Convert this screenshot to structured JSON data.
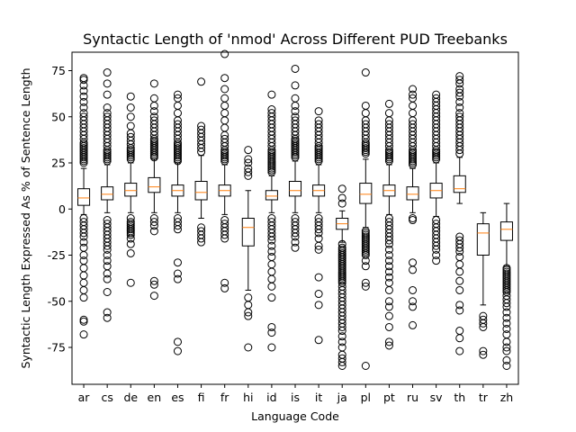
{
  "chart_data": {
    "type": "boxplot",
    "title": "Syntactic Length of 'nmod' Across Different PUD Treebanks",
    "xlabel": "Language Code",
    "ylabel": "Syntactic Length Expressed As % of Sentence Length",
    "ylim": [
      -95,
      85
    ],
    "yticks": [
      -75,
      -50,
      -25,
      0,
      25,
      50,
      75
    ],
    "grid": false,
    "colors": {
      "box": "#000000",
      "median": "#ff7f0e",
      "flier": "#000000"
    },
    "categories": [
      "ar",
      "cs",
      "de",
      "en",
      "es",
      "fi",
      "fr",
      "hi",
      "id",
      "is",
      "it",
      "ja",
      "pl",
      "pt",
      "ru",
      "sv",
      "th",
      "tr",
      "zh"
    ],
    "boxes": [
      {
        "label": "ar",
        "whislo": -3,
        "q1": 2,
        "med": 6,
        "q3": 11,
        "whishi": 22,
        "fliers": [
          25,
          26,
          27,
          28,
          29,
          30,
          31,
          32,
          33,
          34,
          35,
          36,
          38,
          40,
          42,
          44,
          46,
          48,
          50,
          52,
          55,
          58,
          61,
          64,
          67,
          70,
          71,
          -5,
          -7,
          -9,
          -11,
          -13,
          -15,
          -18,
          -21,
          -25,
          -28,
          -32,
          -36,
          -40,
          -44,
          -48,
          -60,
          -61,
          -68
        ]
      },
      {
        "label": "cs",
        "whislo": -2,
        "q1": 5,
        "med": 8,
        "q3": 12,
        "whishi": 24,
        "fliers": [
          26,
          27,
          28,
          29,
          30,
          31,
          32,
          34,
          36,
          38,
          40,
          42,
          44,
          46,
          48,
          50,
          52,
          55,
          62,
          68,
          74,
          -6,
          -8,
          -10,
          -12,
          -14,
          -16,
          -18,
          -20,
          -22,
          -25,
          -28,
          -31,
          -35,
          -38,
          -45,
          -56,
          -59
        ]
      },
      {
        "label": "de",
        "whislo": -2,
        "q1": 7,
        "med": 10,
        "q3": 14,
        "whishi": 25,
        "fliers": [
          27,
          28,
          29,
          30,
          31,
          32,
          33,
          35,
          37,
          39,
          41,
          45,
          50,
          55,
          61,
          -5,
          -7,
          -8,
          -9,
          -10,
          -11,
          -12,
          -13,
          -14,
          -16,
          -19,
          -24,
          -40
        ]
      },
      {
        "label": "en",
        "whislo": -2,
        "q1": 9,
        "med": 12,
        "q3": 17,
        "whishi": 27,
        "fliers": [
          28,
          29,
          30,
          31,
          32,
          33,
          34,
          35,
          36,
          37,
          38,
          40,
          42,
          44,
          46,
          48,
          50,
          53,
          56,
          60,
          68,
          -5,
          -7,
          -9,
          -12,
          -39,
          -41,
          -47
        ]
      },
      {
        "label": "es",
        "whislo": -2,
        "q1": 7,
        "med": 10,
        "q3": 13,
        "whishi": 25,
        "fliers": [
          26,
          27,
          28,
          29,
          30,
          31,
          32,
          33,
          34,
          35,
          36,
          38,
          40,
          42,
          44,
          46,
          48,
          52,
          56,
          60,
          62,
          -5,
          -7,
          -9,
          -11,
          -29,
          -35,
          -38,
          -72,
          -77
        ]
      },
      {
        "label": "fi",
        "whislo": -5,
        "q1": 5,
        "med": 9,
        "q3": 15,
        "whishi": 29,
        "fliers": [
          31,
          33,
          35,
          37,
          39,
          41,
          43,
          45,
          69,
          -10,
          -12,
          -14,
          -16,
          -18
        ]
      },
      {
        "label": "fr",
        "whislo": -3,
        "q1": 7,
        "med": 10,
        "q3": 13,
        "whishi": 24,
        "fliers": [
          26,
          27,
          28,
          29,
          30,
          31,
          32,
          34,
          36,
          38,
          40,
          44,
          48,
          52,
          56,
          60,
          65,
          71,
          84,
          -6,
          -8,
          -10,
          -12,
          -14,
          -16,
          -40,
          -43
        ]
      },
      {
        "label": "hi",
        "whislo": -44,
        "q1": -20,
        "med": -10,
        "q3": -5,
        "whishi": 10,
        "fliers": [
          18,
          20,
          22,
          25,
          27,
          32,
          -48,
          -52,
          -56,
          -58,
          -75
        ]
      },
      {
        "label": "id",
        "whislo": -2,
        "q1": 5,
        "med": 7,
        "q3": 10,
        "whishi": 18,
        "fliers": [
          20,
          21,
          22,
          23,
          24,
          25,
          26,
          27,
          28,
          29,
          30,
          31,
          32,
          34,
          36,
          38,
          40,
          42,
          44,
          46,
          48,
          50,
          52,
          54,
          62,
          -5,
          -7,
          -9,
          -11,
          -13,
          -15,
          -17,
          -20,
          -23,
          -26,
          -30,
          -34,
          -38,
          -42,
          -48,
          -64,
          -67,
          -75
        ]
      },
      {
        "label": "is",
        "whislo": -2,
        "q1": 7,
        "med": 10,
        "q3": 15,
        "whishi": 26,
        "fliers": [
          28,
          29,
          30,
          31,
          32,
          33,
          34,
          35,
          36,
          37,
          38,
          40,
          42,
          44,
          46,
          48,
          50,
          53,
          56,
          60,
          67,
          76,
          -5,
          -7,
          -9,
          -11,
          -13,
          -15,
          -18,
          -21
        ]
      },
      {
        "label": "it",
        "whislo": -2,
        "q1": 7,
        "med": 10,
        "q3": 13,
        "whishi": 24,
        "fliers": [
          26,
          27,
          28,
          29,
          30,
          31,
          32,
          33,
          34,
          36,
          38,
          40,
          42,
          44,
          46,
          48,
          53,
          -5,
          -7,
          -9,
          -11,
          -13,
          -16,
          -20,
          -22,
          -37,
          -46,
          -52,
          -71
        ]
      },
      {
        "label": "ja",
        "whislo": -18,
        "q1": -11,
        "med": -8,
        "q3": -5,
        "whishi": -1,
        "fliers": [
          3,
          6,
          11,
          -19,
          -21,
          -22,
          -23,
          -24,
          -25,
          -26,
          -27,
          -28,
          -29,
          -30,
          -31,
          -32,
          -33,
          -34,
          -35,
          -36,
          -37,
          -38,
          -39,
          -40,
          -42,
          -44,
          -46,
          -48,
          -50,
          -52,
          -54,
          -56,
          -58,
          -60,
          -62,
          -64,
          -66,
          -69,
          -72,
          -75,
          -79,
          -81,
          -83,
          -85
        ]
      },
      {
        "label": "pl",
        "whislo": -10,
        "q1": 3,
        "med": 8,
        "q3": 14,
        "whishi": 27,
        "fliers": [
          30,
          31,
          32,
          33,
          34,
          35,
          36,
          38,
          40,
          42,
          44,
          46,
          48,
          52,
          56,
          74,
          -12,
          -13,
          -14,
          -15,
          -16,
          -17,
          -18,
          -19,
          -20,
          -21,
          -22,
          -23,
          -24,
          -25,
          -28,
          -31,
          -40,
          -42,
          -85
        ]
      },
      {
        "label": "pt",
        "whislo": -3,
        "q1": 7,
        "med": 10,
        "q3": 13,
        "whishi": 24,
        "fliers": [
          26,
          27,
          28,
          29,
          30,
          31,
          32,
          34,
          36,
          38,
          40,
          42,
          44,
          46,
          48,
          52,
          57,
          -5,
          -7,
          -9,
          -11,
          -13,
          -15,
          -17,
          -19,
          -22,
          -25,
          -28,
          -31,
          -34,
          -37,
          -40,
          -44,
          -50,
          -53,
          -58,
          -64,
          -72,
          -74
        ]
      },
      {
        "label": "ru",
        "whislo": -2,
        "q1": 5,
        "med": 8,
        "q3": 12,
        "whishi": 22,
        "fliers": [
          24,
          25,
          26,
          27,
          28,
          29,
          30,
          31,
          32,
          34,
          36,
          38,
          40,
          42,
          44,
          46,
          48,
          52,
          56,
          60,
          62,
          65,
          -5,
          -6,
          -29,
          -33,
          -44,
          -50,
          -53,
          -63
        ]
      },
      {
        "label": "sv",
        "whislo": -4,
        "q1": 6,
        "med": 10,
        "q3": 14,
        "whishi": 25,
        "fliers": [
          27,
          28,
          29,
          30,
          31,
          32,
          34,
          36,
          38,
          40,
          42,
          44,
          46,
          48,
          50,
          52,
          54,
          56,
          58,
          60,
          62,
          -6,
          -8,
          -10,
          -12,
          -14,
          -16,
          -18,
          -20,
          -22,
          -25,
          -28
        ]
      },
      {
        "label": "th",
        "whislo": 3,
        "q1": 9,
        "med": 11,
        "q3": 18,
        "whishi": 28,
        "fliers": [
          30,
          32,
          34,
          36,
          38,
          40,
          42,
          44,
          46,
          48,
          50,
          52,
          55,
          58,
          61,
          63,
          65,
          68,
          70,
          72,
          -15,
          -17,
          -19,
          -21,
          -23,
          -26,
          -30,
          -34,
          -39,
          -44,
          -52,
          -55,
          -66,
          -70,
          -77
        ]
      },
      {
        "label": "tr",
        "whislo": -52,
        "q1": -25,
        "med": -13,
        "q3": -8,
        "whishi": -2,
        "fliers": [
          -58,
          -60,
          -62,
          -64,
          -77,
          -79
        ]
      },
      {
        "label": "zh",
        "whislo": -31,
        "q1": -17,
        "med": -11,
        "q3": -7,
        "whishi": 3,
        "fliers": [
          -32,
          -33,
          -34,
          -35,
          -36,
          -37,
          -38,
          -39,
          -40,
          -41,
          -42,
          -43,
          -44,
          -45,
          -47,
          -49,
          -51,
          -53,
          -56,
          -59,
          -62,
          -65,
          -68,
          -72,
          -75,
          -77,
          -82,
          -85
        ]
      }
    ]
  }
}
